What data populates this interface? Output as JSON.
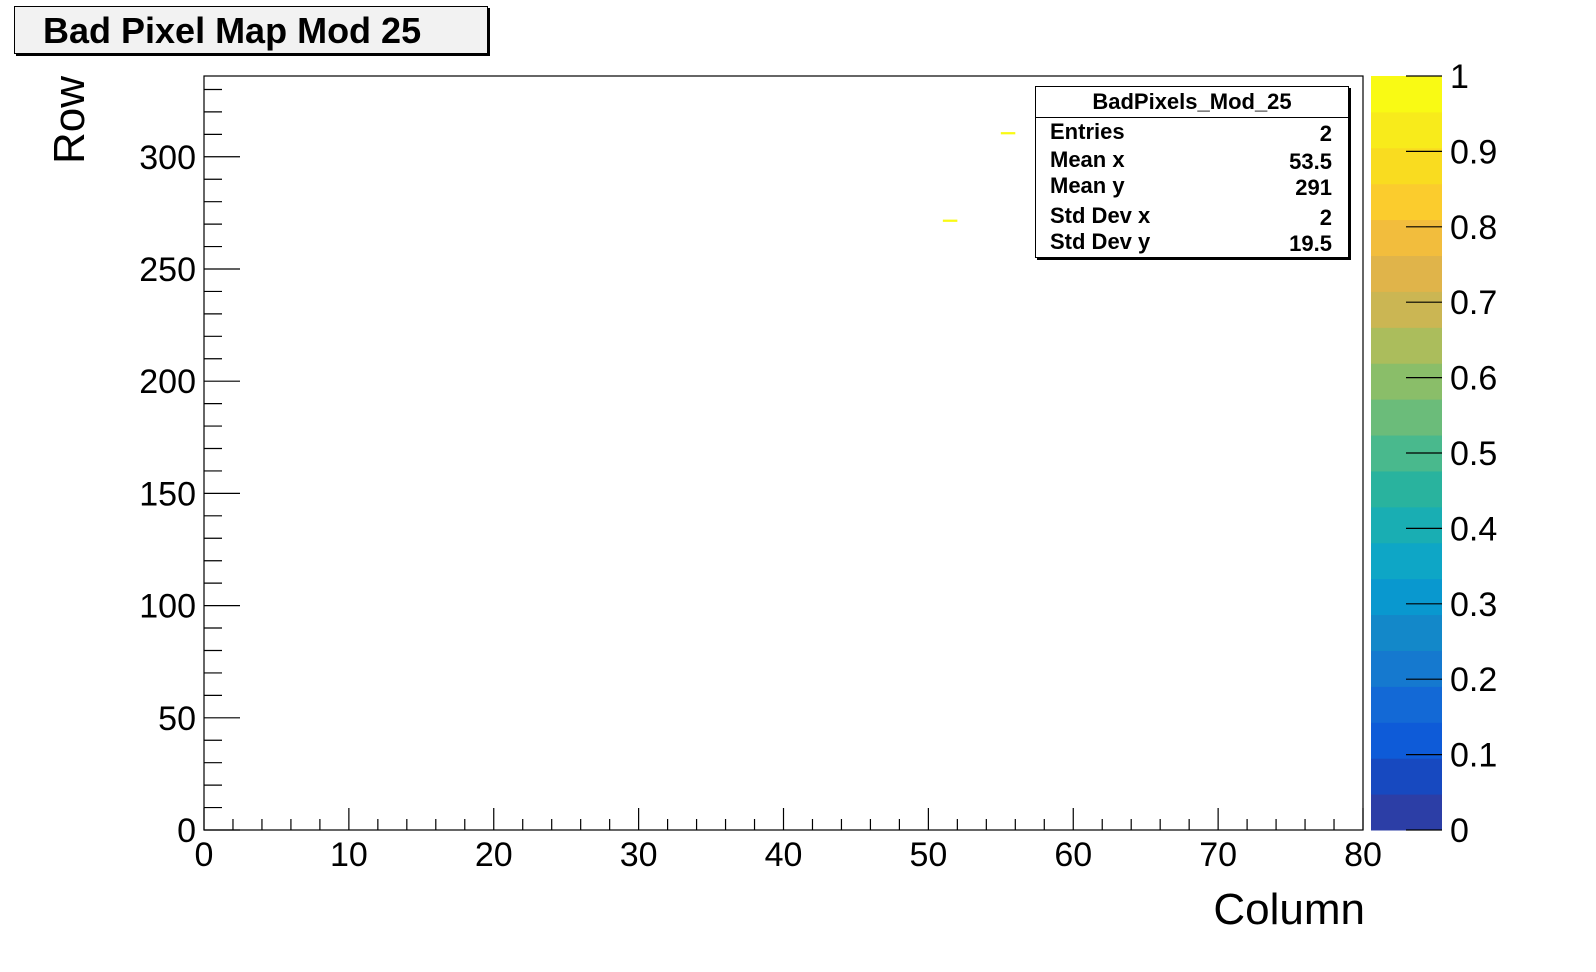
{
  "title": "Bad Pixel Map Mod 25",
  "chart_data": {
    "type": "heatmap",
    "title": "Bad Pixel Map Mod 25",
    "xlabel": "Column",
    "ylabel": "Row",
    "xlim": [
      0,
      80
    ],
    "ylim": [
      0,
      336
    ],
    "x_ticks": [
      "0",
      "10",
      "20",
      "30",
      "40",
      "50",
      "60",
      "70",
      "80"
    ],
    "y_ticks": [
      "0",
      "50",
      "100",
      "150",
      "200",
      "250",
      "300"
    ],
    "colorbar": {
      "range": [
        0,
        1
      ],
      "ticks": [
        "0",
        "0.1",
        "0.2",
        "0.3",
        "0.4",
        "0.5",
        "0.6",
        "0.7",
        "0.8",
        "0.9",
        "1"
      ],
      "colors": [
        "#2c3ea6",
        "#1749c0",
        "#0e5bd8",
        "#1369d6",
        "#1579cf",
        "#1388c9",
        "#0998cf",
        "#0ea6c6",
        "#19aeb3",
        "#29b39e",
        "#49b98d",
        "#6bbc7a",
        "#8abe69",
        "#abbd5c",
        "#cbb653",
        "#e0b44a",
        "#f2bd3d",
        "#fbcc2d",
        "#f9dc20",
        "#f8eb1b",
        "#f9fa14"
      ]
    },
    "points": [
      {
        "x": 51.5,
        "y": 271.5,
        "value": 1
      },
      {
        "x": 55.5,
        "y": 310.5,
        "value": 1
      }
    ],
    "grid": false
  },
  "stats": {
    "name": "BadPixels_Mod_25",
    "rows": [
      {
        "key": "Entries",
        "value": "2"
      },
      {
        "key": "Mean x",
        "value": "53.5"
      },
      {
        "key": "Mean y",
        "value": "291"
      },
      {
        "key": "Std Dev x",
        "value": "2"
      },
      {
        "key": "Std Dev y",
        "value": "19.5"
      }
    ]
  }
}
